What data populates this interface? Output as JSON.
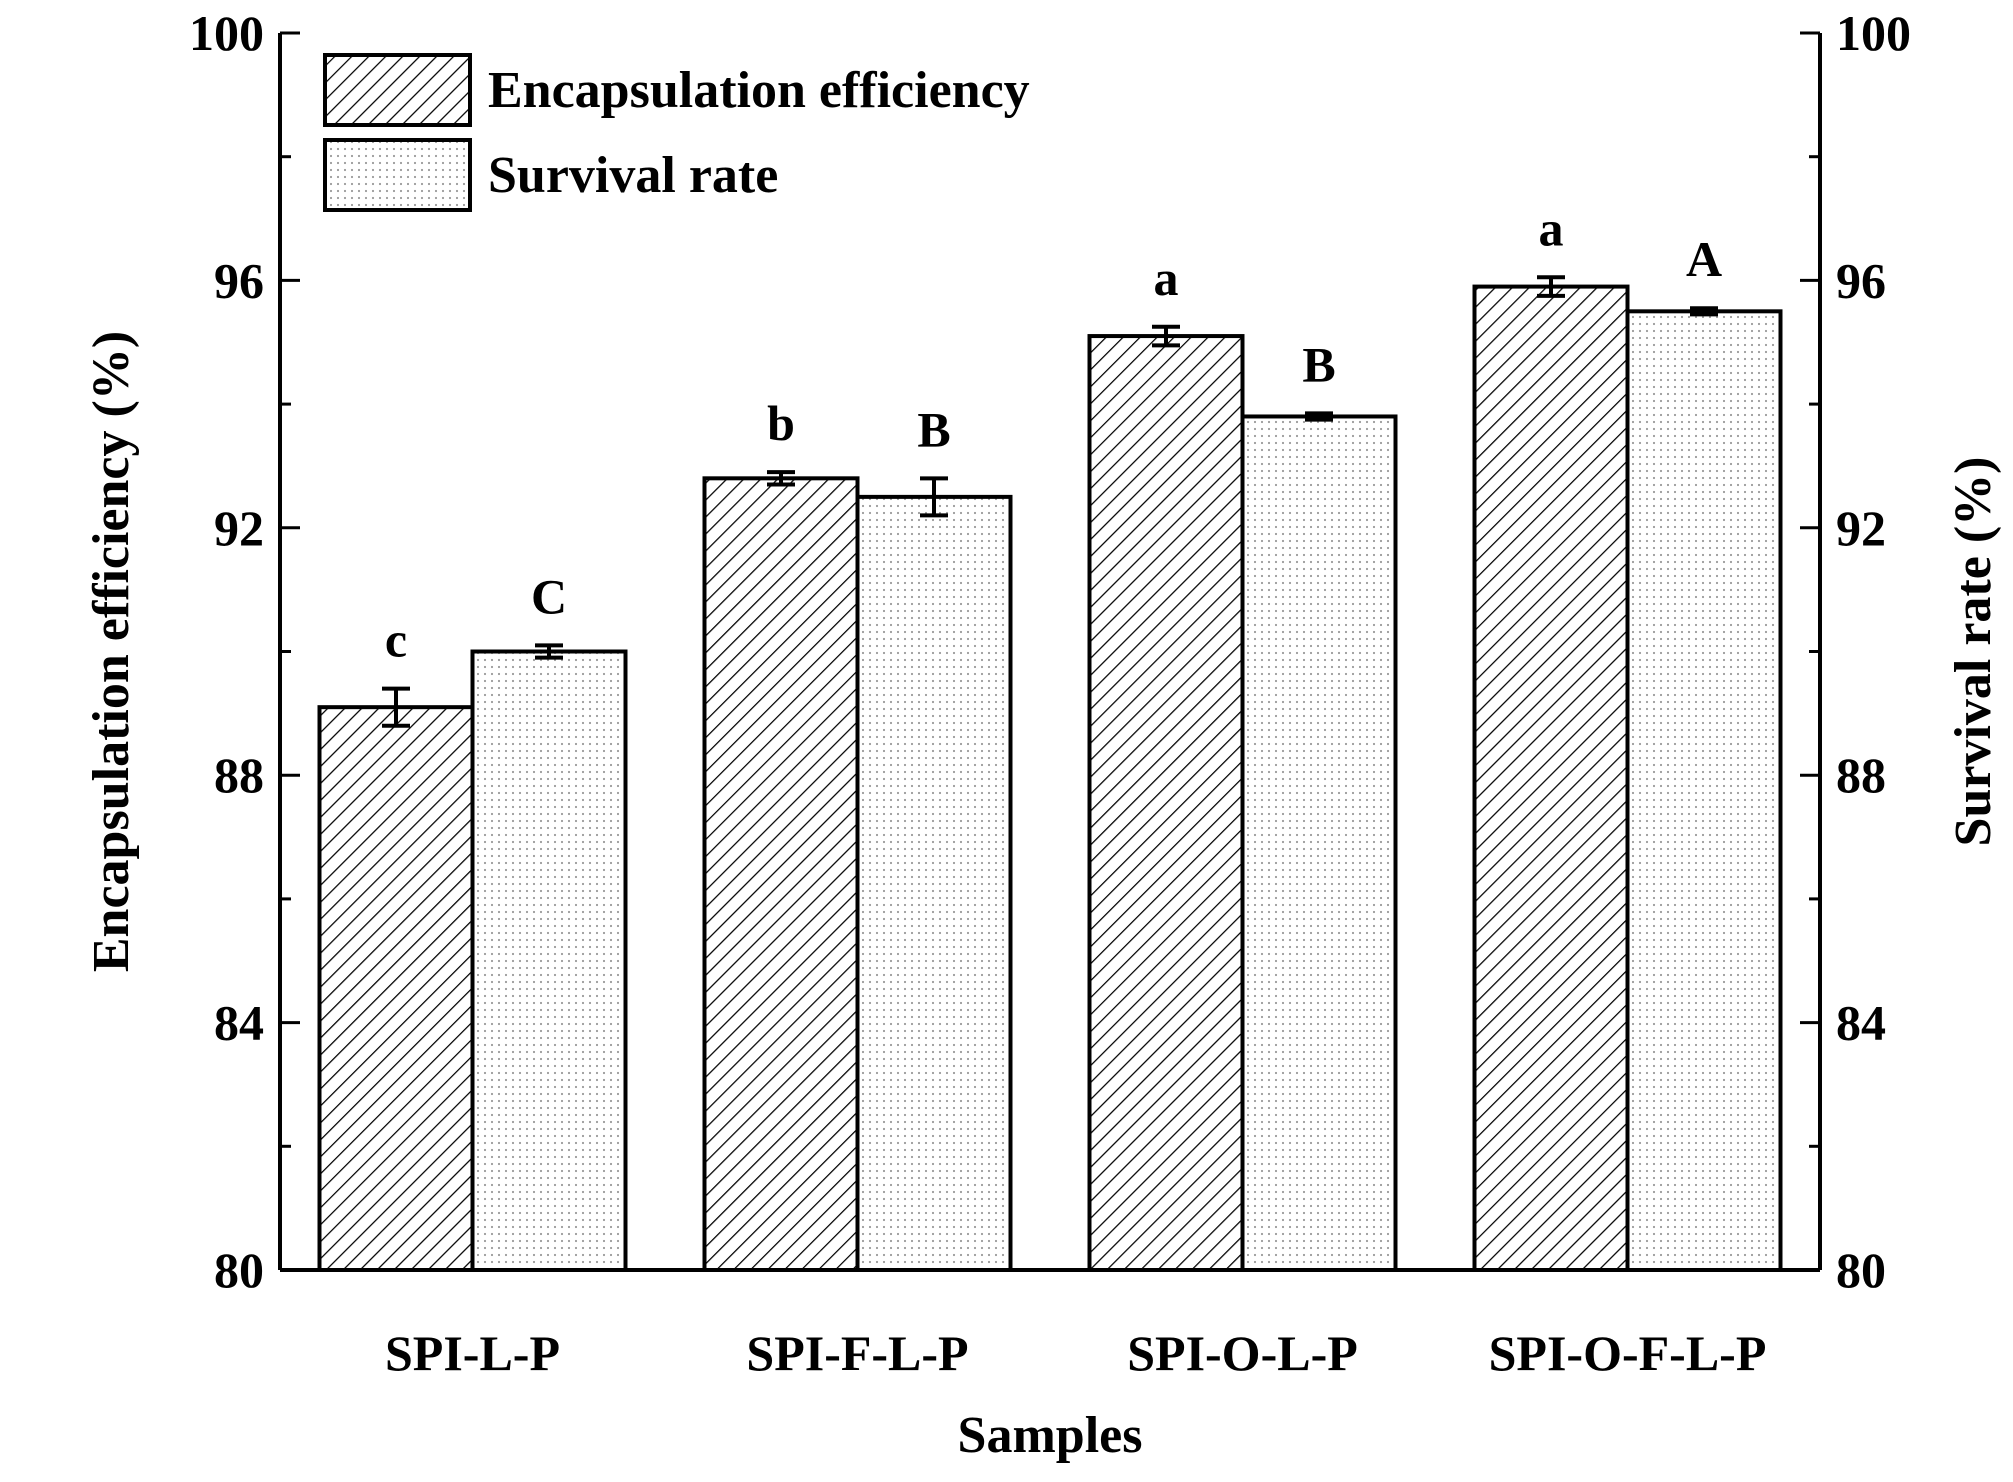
{
  "chart_data": {
    "type": "bar",
    "xlabel": "Samples",
    "ylabel_left": "Encapsulation efficiency (%)",
    "ylabel_right": "Survival rate (%)",
    "ylim": [
      80,
      100
    ],
    "yticks": [
      80,
      84,
      88,
      92,
      96,
      100
    ],
    "grid": false,
    "legend_position": "top-left",
    "categories": [
      "SPI-L-P",
      "SPI-F-L-P",
      "SPI-O-L-P",
      "SPI-O-F-L-P"
    ],
    "series": [
      {
        "name": "Encapsulation efficiency",
        "pattern": "diagonal-hatch",
        "axis": "left",
        "values": [
          89.1,
          92.8,
          95.1,
          95.9
        ],
        "errors": [
          0.3,
          0.1,
          0.15,
          0.15
        ],
        "letters": [
          "c",
          "b",
          "a",
          "a"
        ]
      },
      {
        "name": "Survival rate",
        "pattern": "dots",
        "axis": "right",
        "values": [
          90.0,
          92.5,
          93.8,
          95.5
        ],
        "errors": [
          0.1,
          0.3,
          0.05,
          0.05
        ],
        "letters": [
          "C",
          "B",
          "B",
          "A"
        ]
      }
    ]
  },
  "colors": {
    "bar_outline": "#000000",
    "hatch": "#000000",
    "dots": "#9a9a9a",
    "background": "#ffffff"
  }
}
